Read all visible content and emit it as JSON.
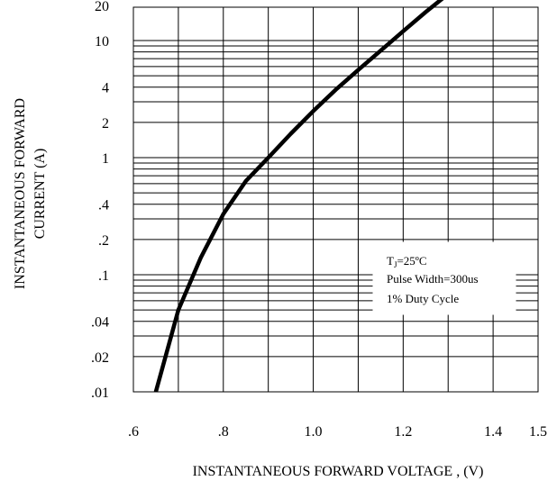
{
  "chart_data": {
    "type": "line",
    "title": "",
    "xlabel": "INSTANTANEOUS FORWARD VOLTAGE , (V)",
    "ylabel_line1": "INSTANTANEOUS FORWARD",
    "ylabel_line2": "CURRENT (A)",
    "x_scale": "linear",
    "y_scale": "log",
    "xlim": [
      0.6,
      1.5
    ],
    "ylim": [
      0.01,
      30
    ],
    "x_ticks": [
      0.6,
      0.8,
      1.0,
      1.2,
      1.4,
      1.5
    ],
    "x_tick_labels": [
      ".6",
      ".8",
      "1.0",
      "1.2",
      "1.4",
      "1.5"
    ],
    "y_ticks": [
      0.01,
      0.02,
      0.04,
      0.1,
      0.2,
      0.4,
      1,
      2,
      4,
      10,
      20
    ],
    "y_tick_labels": [
      ".01",
      ".02",
      ".04",
      ".1",
      ".2",
      ".4",
      "1",
      "2",
      "4",
      "10",
      "20"
    ],
    "grid": true,
    "series": [
      {
        "color": "#000000",
        "x": [
          0.65,
          0.7,
          0.75,
          0.8,
          0.85,
          0.9,
          0.95,
          1.0,
          1.05,
          1.1,
          1.15,
          1.2,
          1.25,
          1.3
        ],
        "y": [
          0.01,
          0.05,
          0.14,
          0.33,
          0.63,
          1.0,
          1.6,
          2.5,
          3.8,
          5.6,
          8.2,
          12,
          17.5,
          25
        ]
      }
    ],
    "annotation": {
      "line1_main": "T",
      "line1_sub": "J",
      "line1_rest": "=25ºC",
      "line2": "Pulse Width=300us",
      "line3": "1% Duty Cycle"
    }
  }
}
